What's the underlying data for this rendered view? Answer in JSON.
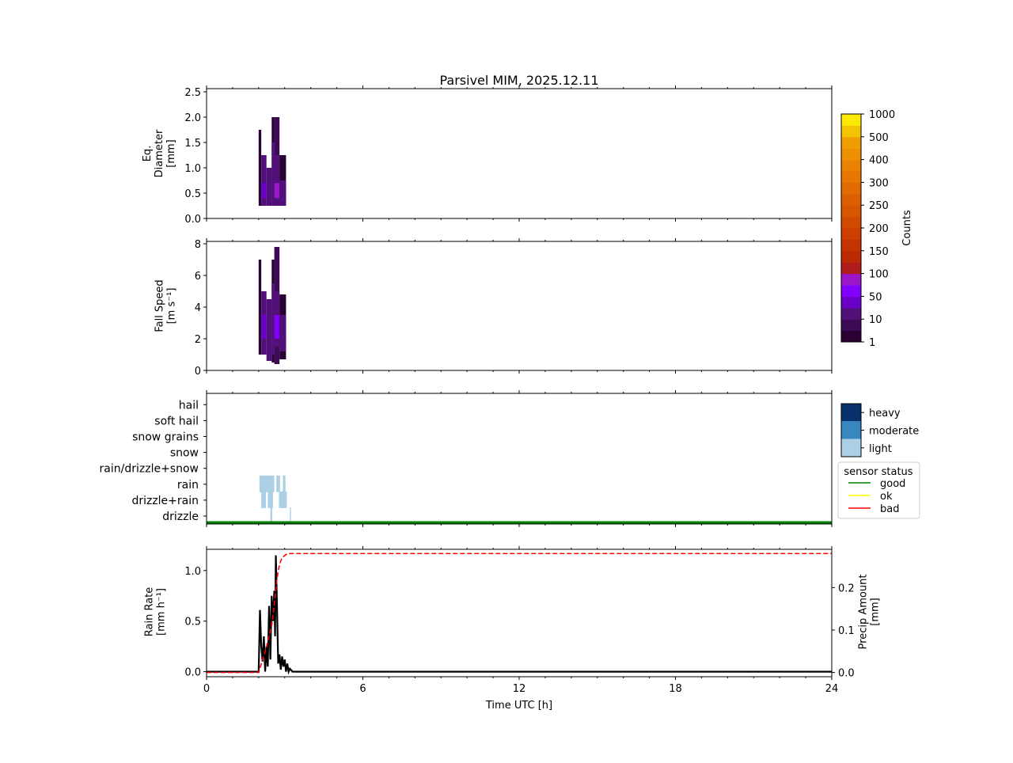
{
  "chart_data": {
    "type": "multi-panel",
    "title": "Parsivel MIM, 2025.12.11",
    "xlabel": "Time UTC [h]",
    "xlim": [
      0,
      24
    ],
    "xticks": [
      "0",
      "6",
      "12",
      "18",
      "24"
    ],
    "panels": [
      {
        "type": "heatmap",
        "ylabel": [
          "Eq.",
          "Diameter",
          "[mm]"
        ],
        "ylim": [
          0,
          2.5
        ],
        "yticks": [
          "0.0",
          "0.5",
          "1.0",
          "1.5",
          "2.0",
          "2.5"
        ],
        "cells": [
          [
            2.0,
            2.1,
            0.25,
            1.75,
            5
          ],
          [
            2.1,
            2.3,
            0.25,
            1.25,
            10
          ],
          [
            2.1,
            2.3,
            0.4,
            0.7,
            40
          ],
          [
            2.3,
            2.5,
            0.25,
            1.0,
            10
          ],
          [
            2.5,
            2.6,
            0.25,
            2.0,
            5
          ],
          [
            2.5,
            2.6,
            0.25,
            1.5,
            20
          ],
          [
            2.6,
            2.8,
            0.25,
            2.0,
            6
          ],
          [
            2.6,
            2.8,
            0.25,
            1.25,
            25
          ],
          [
            2.6,
            2.8,
            0.4,
            0.7,
            80
          ],
          [
            2.8,
            3.05,
            0.25,
            1.25,
            5
          ],
          [
            2.8,
            3.05,
            0.25,
            0.75,
            15
          ]
        ]
      },
      {
        "type": "heatmap",
        "ylabel": [
          "Fall Speed",
          "[m s⁻¹]"
        ],
        "ylim": [
          0,
          8
        ],
        "yticks": [
          "0",
          "2",
          "4",
          "6",
          "8"
        ],
        "cells": [
          [
            2.0,
            2.1,
            1.0,
            7.0,
            5
          ],
          [
            2.1,
            2.3,
            1.0,
            5.0,
            10
          ],
          [
            2.1,
            2.3,
            2.0,
            3.5,
            30
          ],
          [
            2.3,
            2.5,
            0.6,
            4.5,
            10
          ],
          [
            2.5,
            2.6,
            0.5,
            7.0,
            5
          ],
          [
            2.5,
            2.6,
            1.0,
            5.5,
            20
          ],
          [
            2.6,
            2.8,
            0.4,
            7.8,
            6
          ],
          [
            2.6,
            2.8,
            1.5,
            5.0,
            25
          ],
          [
            2.6,
            2.8,
            2.0,
            3.5,
            60
          ],
          [
            2.8,
            3.05,
            0.7,
            4.8,
            5
          ],
          [
            2.8,
            3.05,
            1.2,
            3.5,
            15
          ]
        ]
      },
      {
        "type": "categorical",
        "categories": [
          "drizzle",
          "drizzle+rain",
          "rain",
          "rain/drizzle+snow",
          "snow",
          "snow grains",
          "soft hail",
          "hail"
        ],
        "intensity_legend": [
          "heavy",
          "moderate",
          "light"
        ],
        "intensity_colors": [
          "#08306b",
          "#3787c0",
          "#abd0e6"
        ],
        "segments": [
          {
            "category": "rain",
            "intensity": "light",
            "t": [
              2.03,
              2.6
            ]
          },
          {
            "category": "rain",
            "intensity": "light",
            "t": [
              2.68,
              2.82
            ]
          },
          {
            "category": "rain",
            "intensity": "light",
            "t": [
              2.93,
              3.03
            ]
          },
          {
            "category": "drizzle+rain",
            "intensity": "light",
            "t": [
              2.1,
              2.28
            ]
          },
          {
            "category": "drizzle+rain",
            "intensity": "light",
            "t": [
              2.35,
              2.55
            ]
          },
          {
            "category": "drizzle+rain",
            "intensity": "light",
            "t": [
              2.78,
              3.08
            ]
          },
          {
            "category": "drizzle",
            "intensity": "light",
            "t": [
              2.45,
              2.52
            ]
          },
          {
            "category": "drizzle",
            "intensity": "light",
            "t": [
              3.2,
              3.24
            ]
          }
        ],
        "sensor_status_legend": {
          "title": "sensor status",
          "items": [
            {
              "label": "good",
              "color": "#008000"
            },
            {
              "label": "ok",
              "color": "#ffff00"
            },
            {
              "label": "bad",
              "color": "#ff0000"
            }
          ]
        },
        "sensor_status": "good"
      },
      {
        "type": "line",
        "ylabel": [
          "Rain Rate",
          "[mm h⁻¹]"
        ],
        "ylim": [
          -0.05,
          1.21
        ],
        "yticks": [
          "0.0",
          "0.5",
          "1.0"
        ],
        "y2label": [
          "Precip Amount",
          "[mm]"
        ],
        "y2lim": [
          -0.01,
          0.29
        ],
        "y2ticks": [
          "0.0",
          "0.1",
          "0.2"
        ],
        "series": [
          {
            "name": "Rain Rate",
            "color": "#000000",
            "style": "solid",
            "x": [
              0,
              2.0,
              2.05,
              2.1,
              2.15,
              2.2,
              2.25,
              2.3,
              2.35,
              2.4,
              2.45,
              2.5,
              2.55,
              2.6,
              2.63,
              2.66,
              2.7,
              2.75,
              2.8,
              2.85,
              2.9,
              2.95,
              3.0,
              3.05,
              3.1,
              3.15,
              3.2,
              3.3,
              24
            ],
            "y": [
              0,
              0,
              0.61,
              0.25,
              0.1,
              0.35,
              0.0,
              0.25,
              0.05,
              0.65,
              0.12,
              0.75,
              0.5,
              0.8,
              0.35,
              1.15,
              0.7,
              0.08,
              0.17,
              0.02,
              0.15,
              0.05,
              0.12,
              0.0,
              0.08,
              0.0,
              0.03,
              0,
              0
            ]
          },
          {
            "name": "Precip Amount",
            "color": "#ff0000",
            "style": "dashed",
            "axis": "right",
            "x": [
              0,
              2.0,
              2.1,
              2.3,
              2.5,
              2.6,
              2.7,
              2.8,
              2.9,
              3.0,
              3.1,
              3.3,
              24
            ],
            "y": [
              0,
              0,
              0.02,
              0.06,
              0.11,
              0.16,
              0.22,
              0.255,
              0.27,
              0.275,
              0.28,
              0.28,
              0.28
            ]
          }
        ]
      }
    ],
    "colorbar": {
      "label": "Counts",
      "ticks": [
        "1",
        "10",
        "50",
        "100",
        "150",
        "200",
        "250",
        "300",
        "400",
        "500",
        "1000"
      ],
      "colors": [
        "#2a0033",
        "#3d0a55",
        "#52117a",
        "#6a00c8",
        "#8200ff",
        "#9a16c8",
        "#b01b1b",
        "#bb2a00",
        "#c43400",
        "#cc3f00",
        "#d24a00",
        "#d85500",
        "#dd6000",
        "#e26b00",
        "#e77700",
        "#eb8300",
        "#ee9000",
        "#f09d00",
        "#f3c400",
        "#fde800"
      ]
    }
  }
}
